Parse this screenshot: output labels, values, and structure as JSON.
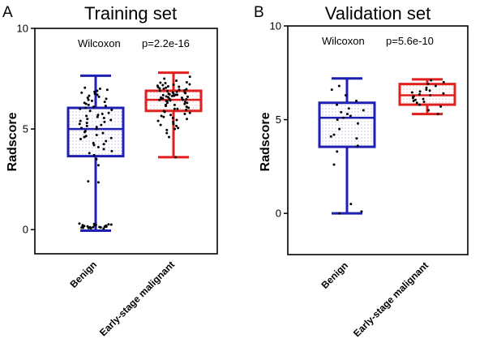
{
  "chart_data": [
    {
      "panel_letter": "A",
      "title": "Training set",
      "type": "box",
      "ylabel": "Radscore",
      "ylim": [
        -1.2,
        10
      ],
      "yticks": [
        "0",
        "5",
        "10"
      ],
      "yticks_values": [
        0,
        5,
        10
      ],
      "grid": false,
      "statistic": {
        "test": "Wilcoxon",
        "p_text": "p=2.2e-16"
      },
      "categories": [
        "Benign",
        "Early-stage malignant"
      ],
      "colors": {
        "Benign": "#1f1fb4",
        "Early-stage malignant": "#e01f1f"
      },
      "boxes": [
        {
          "category": "Benign",
          "min": -0.05,
          "q1": 3.65,
          "median": 5.0,
          "q3": 6.05,
          "max": 7.65
        },
        {
          "category": "Early-stage malignant",
          "min": 3.6,
          "q1": 5.9,
          "median": 6.45,
          "q3": 6.9,
          "max": 7.8
        }
      ],
      "points": [
        [
          0.05,
          0.1,
          0.12,
          0.15,
          0.18,
          0.2,
          0.22,
          0.25,
          0.08,
          0.14,
          0.3,
          0.16,
          0.11,
          0.24,
          0.19,
          0.07,
          0.13,
          0.28,
          0.21,
          0.09,
          0.17,
          0.26,
          0.12,
          0.23,
          2.35,
          2.4,
          3.2,
          3.5,
          3.7,
          3.8,
          3.9,
          4.0,
          4.1,
          4.2,
          4.3,
          4.4,
          4.5,
          4.6,
          4.7,
          4.8,
          4.9,
          5.0,
          5.05,
          5.1,
          5.15,
          5.2,
          5.25,
          5.3,
          5.4,
          5.5,
          5.6,
          5.7,
          5.8,
          5.9,
          6.0,
          6.05,
          6.1,
          6.15,
          6.2,
          6.3,
          6.4,
          6.5,
          6.6,
          6.7,
          6.8,
          6.9,
          7.0,
          4.55,
          4.85,
          5.35,
          5.45,
          5.65,
          6.25,
          6.35,
          6.45,
          6.55,
          6.75,
          6.85,
          4.25,
          4.65,
          5.55,
          5.75,
          5.95,
          6.65,
          6.95,
          7.05
        ],
        [
          3.6,
          4.6,
          4.8,
          5.0,
          5.2,
          5.4,
          5.5,
          5.6,
          5.7,
          5.8,
          5.9,
          6.0,
          6.05,
          6.1,
          6.15,
          6.2,
          6.25,
          6.3,
          6.35,
          6.4,
          6.45,
          6.5,
          6.55,
          6.6,
          6.65,
          6.7,
          6.75,
          6.8,
          6.85,
          6.9,
          6.95,
          7.0,
          7.05,
          7.1,
          7.15,
          7.2,
          7.3,
          7.4,
          7.5,
          7.6,
          6.42,
          6.48,
          6.52,
          6.58,
          6.62,
          6.68,
          6.72,
          6.78,
          6.3,
          6.2,
          6.1,
          6.0,
          5.95,
          5.85,
          5.75,
          5.65,
          5.55,
          5.45,
          5.35,
          5.25,
          5.15,
          5.05,
          4.95,
          6.88,
          6.92,
          6.98,
          7.02,
          7.08,
          7.12,
          7.18,
          7.22,
          7.28,
          7.32,
          6.38,
          6.44,
          6.5,
          6.56,
          6.64,
          6.7,
          6.76,
          6.82
        ]
      ]
    },
    {
      "panel_letter": "B",
      "title": "Validation set",
      "type": "box",
      "ylabel": "Radscore",
      "ylim": [
        -2.2,
        10
      ],
      "yticks": [
        "0",
        "5",
        "10"
      ],
      "yticks_values": [
        0,
        5,
        10
      ],
      "grid": false,
      "statistic": {
        "test": "Wilcoxon",
        "p_text": "p=5.6e-10"
      },
      "categories": [
        "Benign",
        "Early-stage malignant"
      ],
      "colors": {
        "Benign": "#1f1fb4",
        "Early-stage malignant": "#e01f1f"
      },
      "boxes": [
        {
          "category": "Benign",
          "min": 0.0,
          "q1": 3.55,
          "median": 5.1,
          "q3": 5.9,
          "max": 7.2
        },
        {
          "category": "Early-stage malignant",
          "min": 5.3,
          "q1": 5.8,
          "median": 6.3,
          "q3": 6.9,
          "max": 7.15
        }
      ],
      "points": [
        [
          0.0,
          0.1,
          0.5,
          2.6,
          3.3,
          3.6,
          4.0,
          4.1,
          4.2,
          4.5,
          4.8,
          5.0,
          5.1,
          5.2,
          5.3,
          5.4,
          5.5,
          5.6,
          5.8,
          6.0,
          6.3,
          6.6,
          6.8
        ],
        [
          5.3,
          5.5,
          5.7,
          5.8,
          5.9,
          6.0,
          6.1,
          6.2,
          6.3,
          6.35,
          6.4,
          6.5,
          6.6,
          6.7,
          6.8,
          6.9,
          7.0,
          7.1,
          6.25,
          6.45,
          6.55,
          6.15,
          5.95,
          6.05
        ]
      ]
    }
  ]
}
